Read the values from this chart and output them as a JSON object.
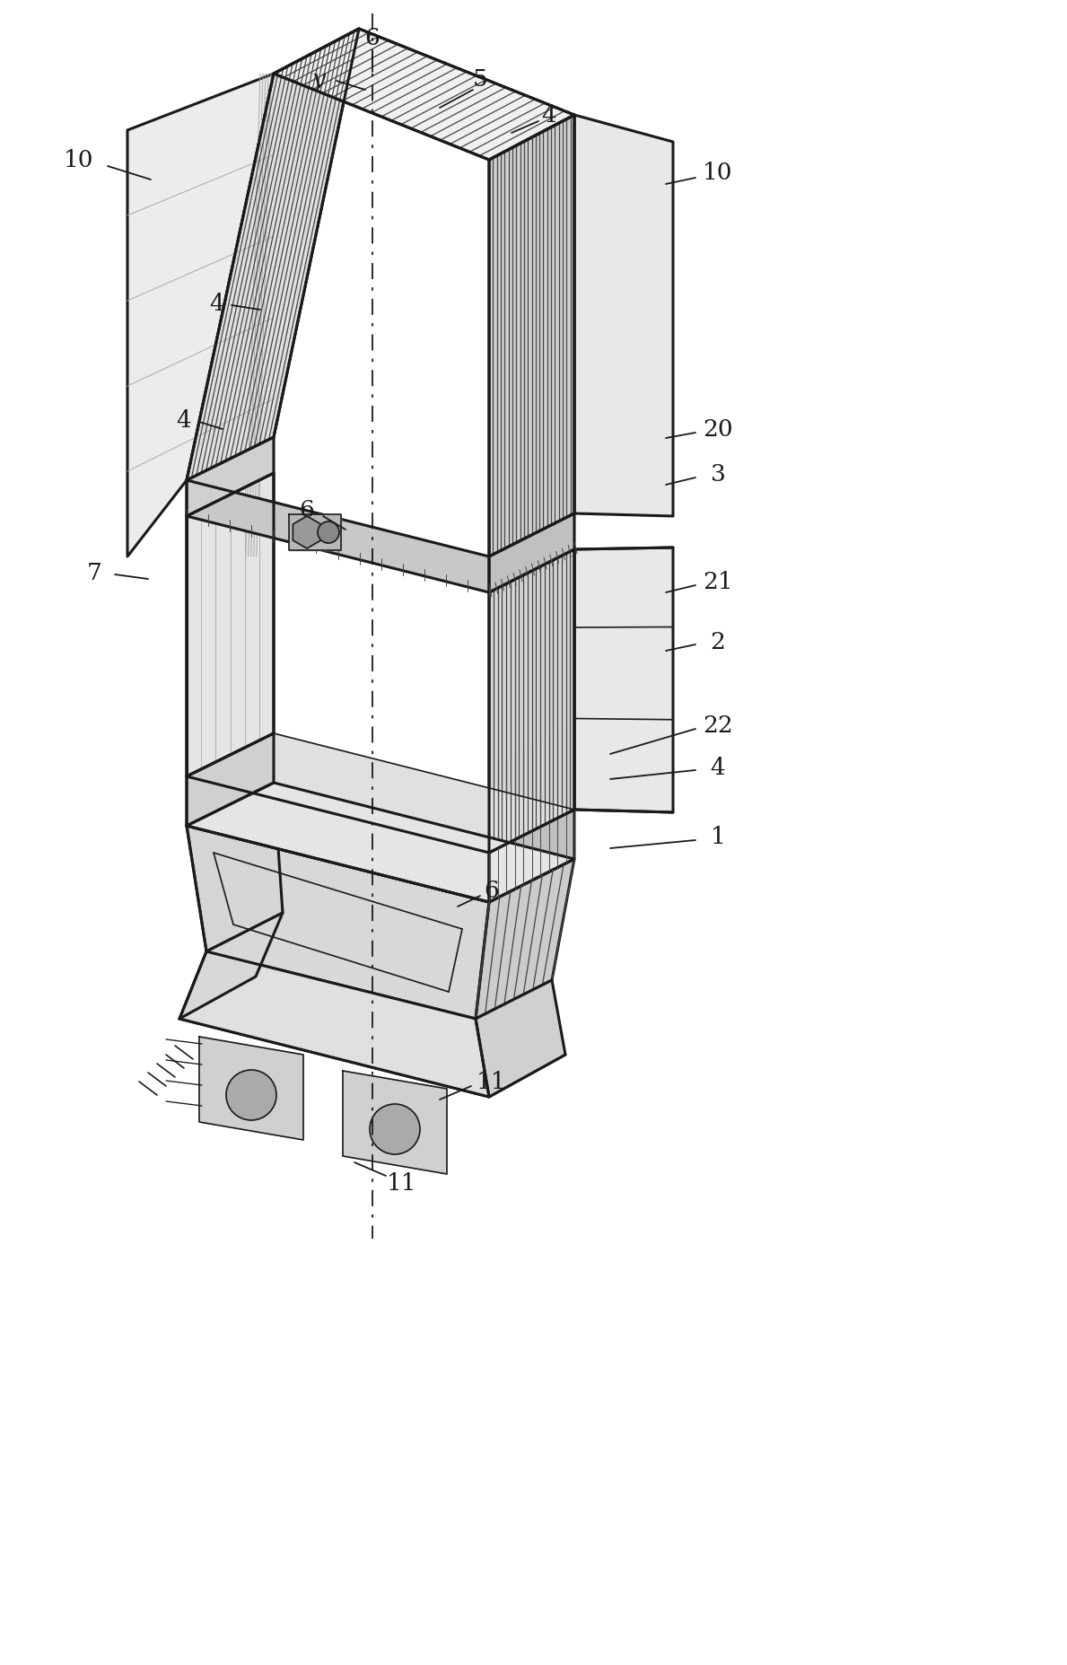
{
  "bg_color": "#ffffff",
  "line_color": "#1a1a1a",
  "fig_width": 11.89,
  "fig_height": 18.55,
  "dpi": 100,
  "annotation_fontsize": 19,
  "lw_outer": 2.2,
  "lw_inner": 1.2,
  "lw_fin": 0.9,
  "fin_color": "#444444",
  "face_top": "#f5f5f5",
  "face_left": "#e8e8e8",
  "face_front": "#d8d8d8",
  "face_right": "#cccccc",
  "face_dark": "#c0c0c0"
}
